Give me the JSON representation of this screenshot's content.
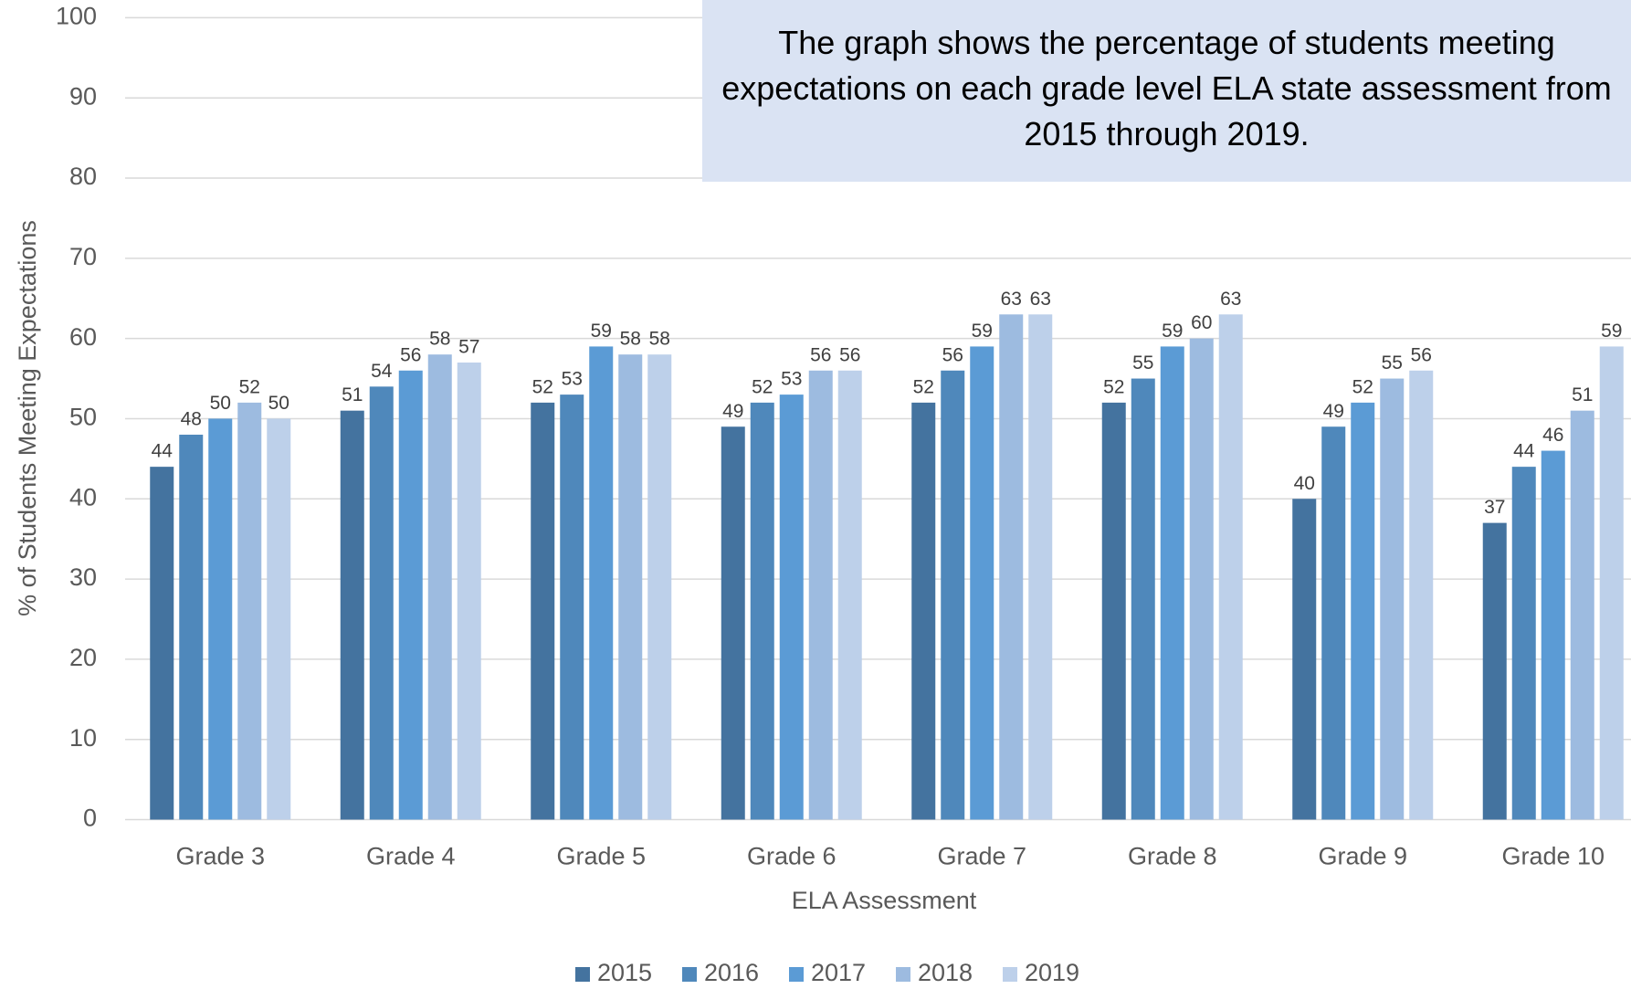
{
  "chart_data": {
    "type": "bar",
    "annotation": "The graph shows the percentage of students meeting expectations on each grade level ELA state assessment from 2015 through 2019.",
    "x_label": "ELA Assessment",
    "y_label": "% of Students Meeting Expectations",
    "categories": [
      "Grade 3",
      "Grade 4",
      "Grade 5",
      "Grade 6",
      "Grade 7",
      "Grade 8",
      "Grade 9",
      "Grade 10"
    ],
    "series": [
      {
        "name": "2015",
        "color": "#44739f",
        "values": [
          44,
          51,
          52,
          49,
          52,
          52,
          40,
          37
        ]
      },
      {
        "name": "2016",
        "color": "#4f88bb",
        "values": [
          48,
          54,
          53,
          52,
          56,
          55,
          49,
          44
        ]
      },
      {
        "name": "2017",
        "color": "#5b9bd5",
        "values": [
          50,
          56,
          59,
          53,
          59,
          59,
          52,
          46
        ]
      },
      {
        "name": "2018",
        "color": "#9dbbe0",
        "values": [
          52,
          58,
          58,
          56,
          63,
          60,
          55,
          51
        ]
      },
      {
        "name": "2019",
        "color": "#bdd0ea",
        "values": [
          50,
          57,
          58,
          56,
          63,
          63,
          56,
          59
        ]
      }
    ],
    "ylim": [
      0,
      100
    ],
    "yticks": [
      0,
      10,
      20,
      30,
      40,
      50,
      60,
      70,
      80,
      90,
      100
    ],
    "grid": true,
    "legend": "bottom"
  }
}
